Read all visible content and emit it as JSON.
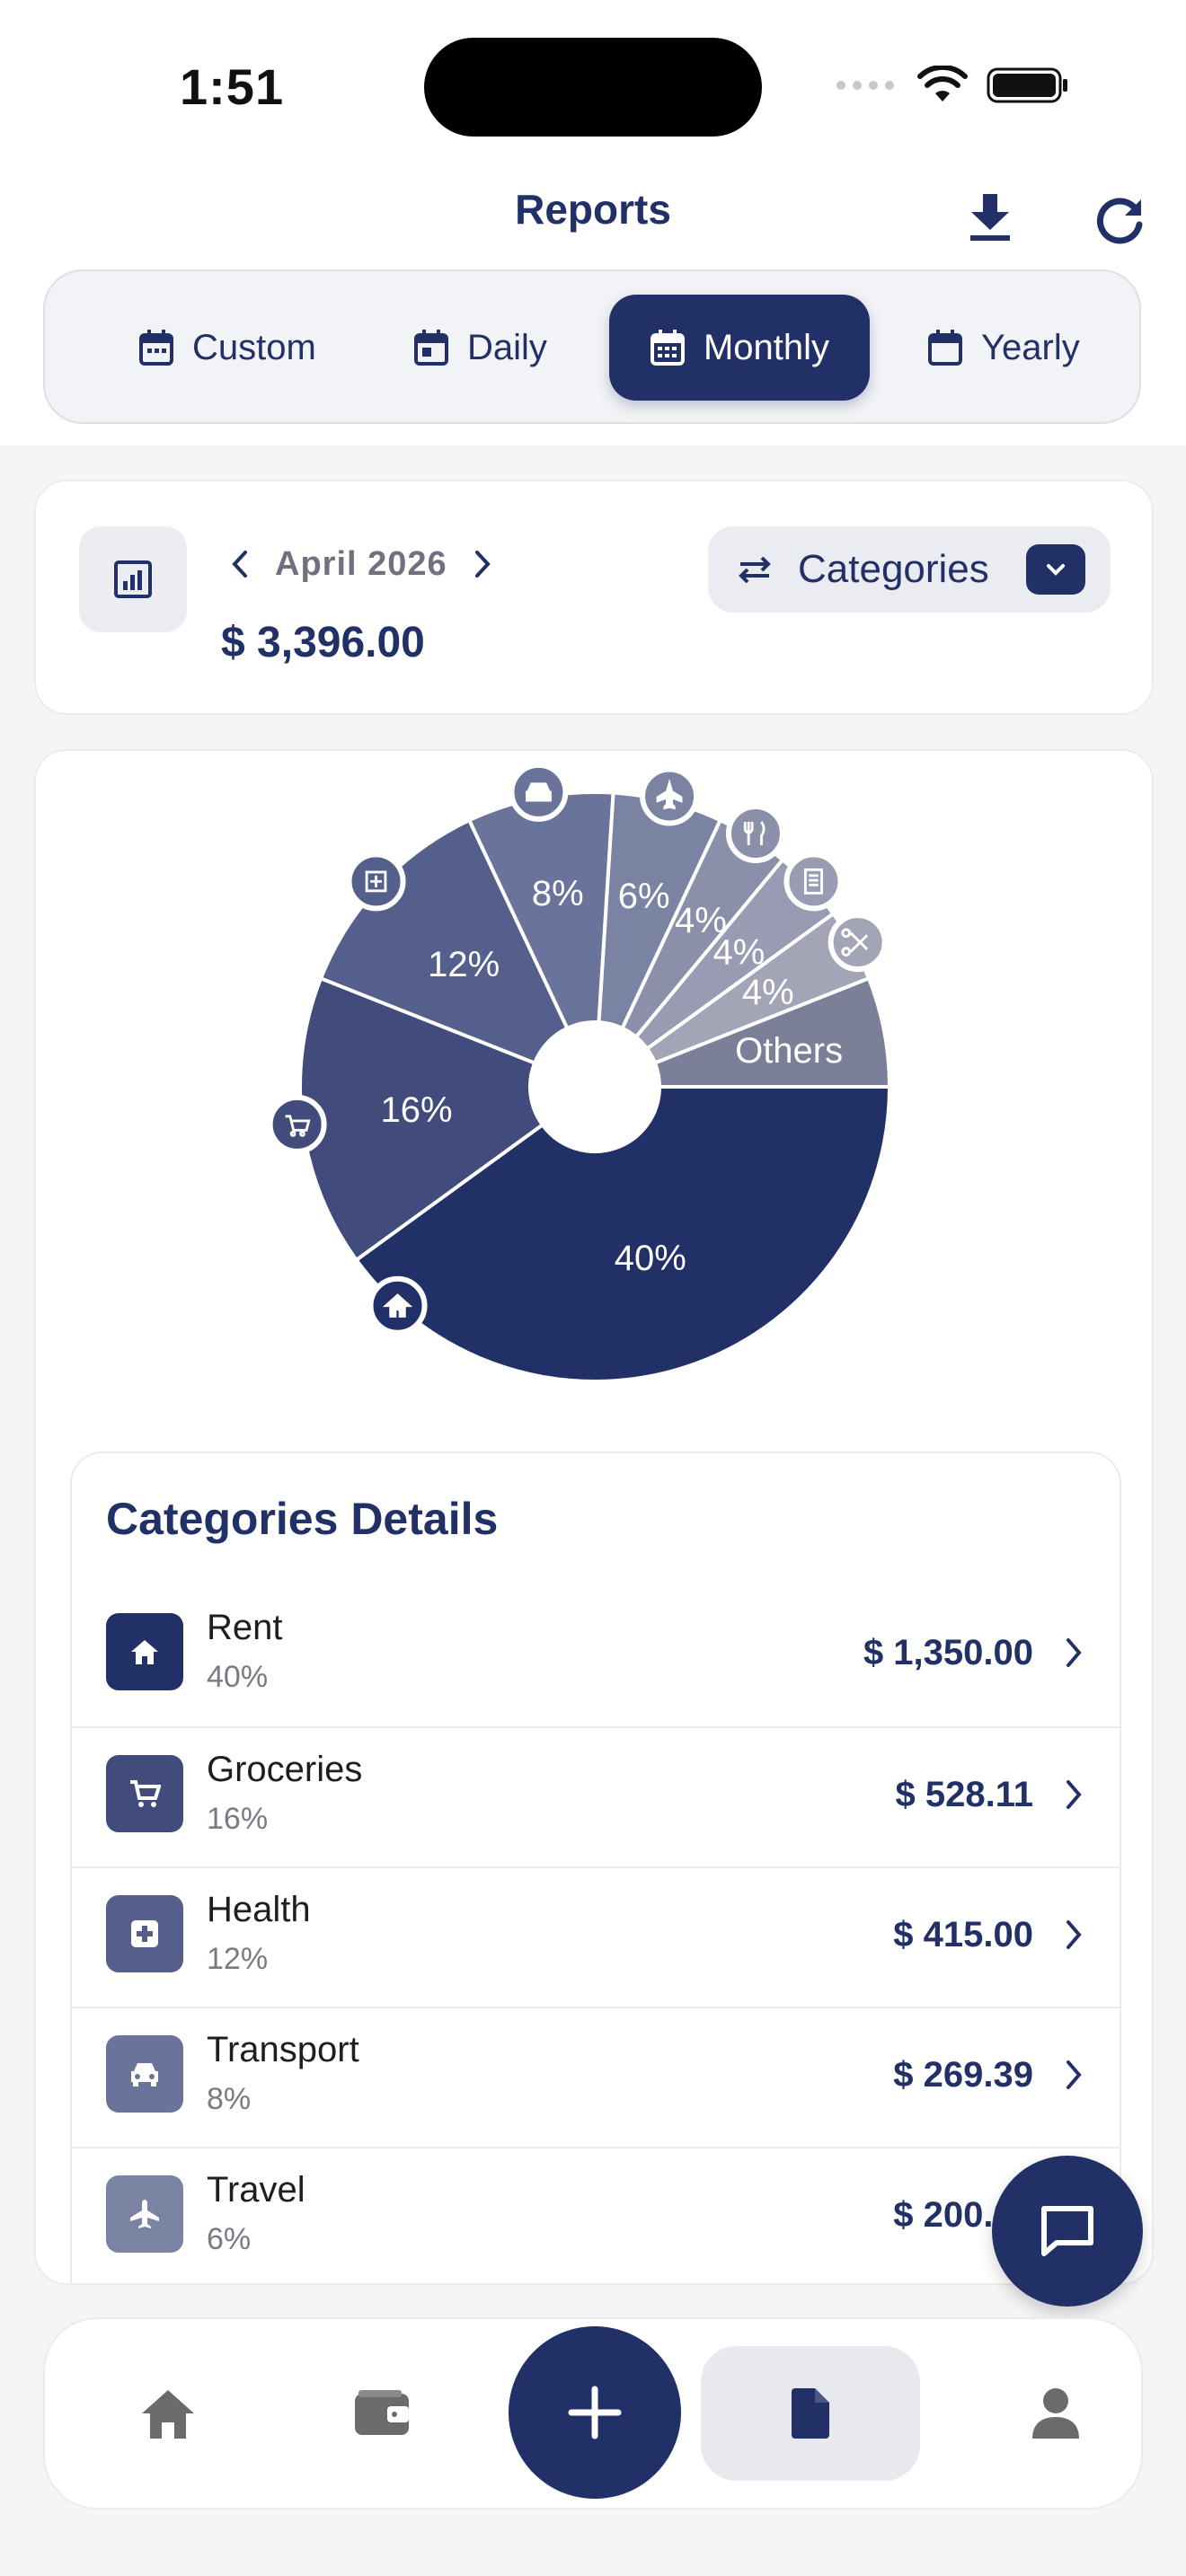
{
  "status_bar": {
    "time": "1:51"
  },
  "header": {
    "title": "Reports",
    "download_icon": "download-icon",
    "refresh_icon": "refresh-icon"
  },
  "period_tabs": [
    {
      "label": "Custom",
      "active": false
    },
    {
      "label": "Daily",
      "active": false
    },
    {
      "label": "Monthly",
      "active": true
    },
    {
      "label": "Yearly",
      "active": false
    }
  ],
  "summary": {
    "month": "April 2026",
    "total": "$ 3,396.00",
    "group_by": "Categories"
  },
  "chart_data": {
    "type": "pie",
    "title": "",
    "slices": [
      {
        "label": "Rent",
        "percent": 40,
        "display": "40%",
        "icon": "home-icon",
        "color": "#223068"
      },
      {
        "label": "Groceries",
        "percent": 16,
        "display": "16%",
        "icon": "cart-icon",
        "color": "#414c7d"
      },
      {
        "label": "Health",
        "percent": 12,
        "display": "12%",
        "icon": "medical-icon",
        "color": "#545f8b"
      },
      {
        "label": "Transport",
        "percent": 8,
        "display": "8%",
        "icon": "car-icon",
        "color": "#6a7399"
      },
      {
        "label": "Travel",
        "percent": 6,
        "display": "6%",
        "icon": "plane-icon",
        "color": "#7b83a3"
      },
      {
        "label": "Dining",
        "percent": 4,
        "display": "4%",
        "icon": "fork-knife-icon",
        "color": "#8b90aa"
      },
      {
        "label": "Bills",
        "percent": 4,
        "display": "4%",
        "icon": "receipt-icon",
        "color": "#989bb1"
      },
      {
        "label": "Personal Care",
        "percent": 4,
        "display": "4%",
        "icon": "scissors-icon",
        "color": "#a3a5b6"
      },
      {
        "label": "Others",
        "percent": 6,
        "display": "Others",
        "icon": "",
        "color": "#7b7f98"
      }
    ]
  },
  "details": {
    "title": "Categories Details",
    "rows": [
      {
        "name": "Rent",
        "percent": "40%",
        "amount": "$ 1,350.00",
        "icon": "home-icon",
        "color": "#223068"
      },
      {
        "name": "Groceries",
        "percent": "16%",
        "amount": "$ 528.11",
        "icon": "cart-icon",
        "color": "#414c7d"
      },
      {
        "name": "Health",
        "percent": "12%",
        "amount": "$ 415.00",
        "icon": "medical-icon",
        "color": "#545f8b"
      },
      {
        "name": "Transport",
        "percent": "8%",
        "amount": "$ 269.39",
        "icon": "car-icon",
        "color": "#6a7399"
      },
      {
        "name": "Travel",
        "percent": "6%",
        "amount": "$ 200.00",
        "icon": "plane-icon",
        "color": "#7b83a3"
      }
    ]
  },
  "bottom_nav": [
    {
      "name": "home",
      "icon": "home-icon",
      "active": false
    },
    {
      "name": "wallet",
      "icon": "wallet-icon",
      "active": false
    },
    {
      "name": "add",
      "icon": "plus-icon",
      "active": false
    },
    {
      "name": "reports",
      "icon": "document-icon",
      "active": true
    },
    {
      "name": "profile",
      "icon": "person-icon",
      "active": false
    }
  ],
  "colors": {
    "primary": "#223068",
    "background": "#f5f5f7"
  }
}
